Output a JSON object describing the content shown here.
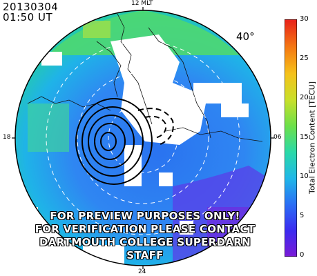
{
  "header": {
    "date": "20130304",
    "time": "01:50 UT"
  },
  "map": {
    "mlt_top": "12 MLT",
    "mlt_left": "18",
    "mlt_right": "06",
    "mlt_bottom": "24",
    "latitude_label": "40°",
    "colors": {
      "convection_contour": "#000000",
      "latitude_circle": "#ffffff",
      "coastline": "#111111"
    }
  },
  "colorbar": {
    "title": "Total Electron Content [TECU]",
    "min": 0,
    "max": 30,
    "ticks": [
      "0",
      "5",
      "10",
      "15",
      "20",
      "25",
      "30"
    ],
    "colors": [
      "#7a1ad6",
      "#3b2bf0",
      "#2a6ef5",
      "#1fb7e8",
      "#2ad9a8",
      "#6ce04a",
      "#c8e02a",
      "#f5c21a",
      "#f57a12",
      "#e8201a"
    ]
  },
  "overlay": {
    "line1": "FOR PREVIEW PURPOSES ONLY!",
    "line2": "FOR VERIFICATION PLEASE CONTACT",
    "line3": "DARTMOUTH COLLEGE SUPERDARN STAFF"
  }
}
